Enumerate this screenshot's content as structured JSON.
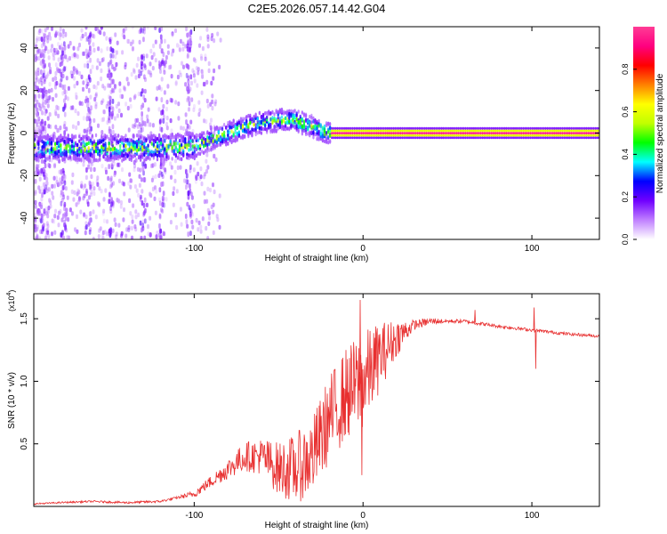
{
  "title": "C2E5.2026.057.14.42.G04",
  "chart_data": [
    {
      "type": "heatmap",
      "xlabel": "Height of straight line (km)",
      "ylabel": "Frequency (Hz)",
      "xlim": [
        -195,
        140
      ],
      "ylim": [
        -50,
        50
      ],
      "x_ticks": [
        -100,
        0,
        100
      ],
      "y_ticks": [
        -40,
        -20,
        0,
        20,
        40
      ],
      "colorbar": {
        "label": "Normalized spectral amplitude",
        "range": [
          0,
          1
        ],
        "ticks": [
          "0.0",
          "0.2",
          "0.4",
          "0.6",
          "0.8"
        ],
        "colors": [
          "#ffffff",
          "#c080ff",
          "#7000ff",
          "#0000ff",
          "#00ffff",
          "#00ff00",
          "#c0ff00",
          "#ffff00",
          "#ff8000",
          "#ff0000",
          "#ff0080",
          "#ff3c96"
        ]
      },
      "ridge": {
        "x": [
          -195,
          -180,
          -160,
          -140,
          -120,
          -100,
          -90,
          -80,
          -70,
          -60,
          -50,
          -40,
          -35,
          -30,
          -25,
          -20,
          -10,
          0,
          140
        ],
        "y": [
          -7,
          -7,
          -7,
          -7,
          -7,
          -6,
          -3,
          0,
          3,
          5,
          6,
          6,
          4,
          3,
          1,
          0,
          0,
          0,
          0
        ]
      }
    },
    {
      "type": "line",
      "series_name": "SNR",
      "xlabel": "Height of straight line (km)",
      "ylabel": "SNR (10 * v/v)",
      "y_multiplier": "(x10",
      "y_multiplier_exp": "4",
      "y_multiplier_close": ")",
      "xlim": [
        -195,
        140
      ],
      "ylim": [
        0,
        17000
      ],
      "x_ticks": [
        -100,
        0,
        100
      ],
      "y_ticks": [
        5000,
        10000,
        15000
      ],
      "y_tick_labels": [
        "0.5",
        "1.0",
        "1.5"
      ],
      "line_color": "#e83030",
      "envelope": {
        "x": [
          -195,
          -180,
          -160,
          -140,
          -120,
          -100,
          -90,
          -80,
          -70,
          -60,
          -50,
          -40,
          -30,
          -20,
          -10,
          0,
          10,
          20,
          30,
          40,
          60,
          80,
          100,
          120,
          140
        ],
        "y": [
          200,
          300,
          400,
          300,
          400,
          1000,
          2000,
          3000,
          4000,
          4000,
          3000,
          3000,
          4000,
          7000,
          9000,
          10000,
          12000,
          13500,
          14500,
          14800,
          14800,
          14400,
          14100,
          13800,
          13600
        ]
      },
      "noise_amplitude": {
        "x": [
          -195,
          -110,
          -90,
          -60,
          -40,
          -20,
          0,
          20,
          30,
          50,
          140
        ],
        "y": [
          60,
          100,
          500,
          1500,
          2800,
          3500,
          4000,
          1500,
          400,
          150,
          120
        ]
      },
      "spikes": [
        {
          "x": -2,
          "y": 16500
        },
        {
          "x": -1,
          "y": 2500
        },
        {
          "x": 66,
          "y": 15700
        },
        {
          "x": 101,
          "y": 15900
        },
        {
          "x": 102,
          "y": 11000
        }
      ]
    }
  ]
}
